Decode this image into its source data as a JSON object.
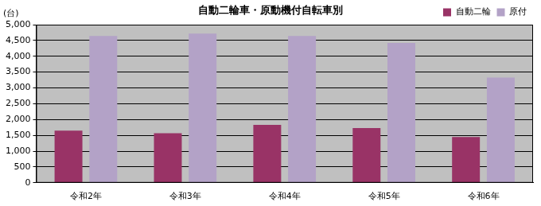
{
  "chart_data": {
    "type": "bar",
    "title": "自動二輪車・原動機付自転車別",
    "ylabel": "(台)",
    "categories": [
      "令和2年",
      "令和3年",
      "令和4年",
      "令和5年",
      "令和6年"
    ],
    "series": [
      {
        "name": "自動二輪",
        "color": "#993366",
        "values": [
          1650,
          1570,
          1830,
          1730,
          1450
        ]
      },
      {
        "name": "原付",
        "color": "#b3a2c7",
        "values": [
          4640,
          4720,
          4640,
          4420,
          3330
        ]
      }
    ],
    "ylim": [
      0,
      5000
    ],
    "yticks": [
      0,
      500,
      {
        "value": 1000,
        "label": "1,000"
      },
      {
        "value": 1500,
        "label": "1,500"
      },
      {
        "value": 2000,
        "label": "2,000"
      },
      {
        "value": 2500,
        "label": "2,500"
      },
      {
        "value": 3000,
        "label": "3,000"
      },
      {
        "value": 3500,
        "label": "3,500"
      },
      {
        "value": 4000,
        "label": "4,000"
      },
      {
        "value": 4500,
        "label": "4,500"
      },
      {
        "value": 5000,
        "label": "5,000"
      }
    ],
    "grid": true,
    "legend": "top-right"
  }
}
